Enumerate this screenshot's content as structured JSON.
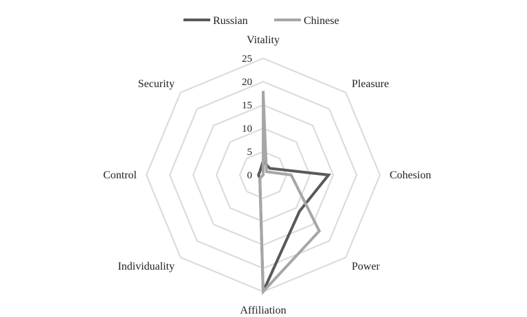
{
  "chart_data": {
    "type": "radar",
    "title": "",
    "axes": [
      "Vitality",
      "Pleasure",
      "Cohesion",
      "Power",
      "Affiliation",
      "Individuality",
      "Control",
      "Security"
    ],
    "rticks": [
      0,
      5,
      10,
      15,
      20,
      25
    ],
    "rlim": [
      0,
      25
    ],
    "grid": true,
    "legend": "top",
    "series": [
      {
        "name": "Russian",
        "values": [
          3,
          2,
          14,
          11,
          25,
          1,
          1,
          1
        ],
        "color": "#595959"
      },
      {
        "name": "Chinese",
        "values": [
          18,
          1,
          6,
          17,
          25,
          1,
          0,
          0
        ],
        "color": "#a6a6a6"
      }
    ],
    "grid_color": "#d9d9d9"
  }
}
